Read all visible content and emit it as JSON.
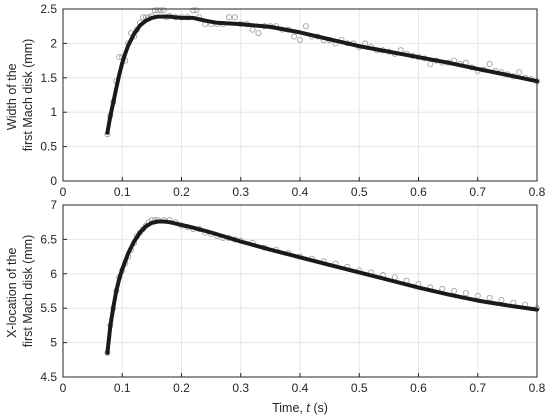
{
  "chart_data": [
    {
      "type": "scatter",
      "ylabel_lines": [
        "Width of the",
        "first Mach disk (mm)"
      ],
      "xlim": [
        0,
        0.8
      ],
      "ylim": [
        0,
        2.5
      ],
      "xticks": [
        "0",
        "0.1",
        "0.2",
        "0.3",
        "0.4",
        "0.5",
        "0.6",
        "0.7",
        "0.8"
      ],
      "yticks": [
        "0",
        "0.5",
        "1",
        "1.5",
        "2",
        "2.5"
      ],
      "grid": true,
      "series": [
        {
          "kind": "markers",
          "color": "#9a9a9a",
          "x": [
            0.075,
            0.08,
            0.085,
            0.09,
            0.095,
            0.1,
            0.105,
            0.11,
            0.115,
            0.12,
            0.125,
            0.13,
            0.135,
            0.14,
            0.145,
            0.15,
            0.155,
            0.16,
            0.165,
            0.17,
            0.175,
            0.18,
            0.19,
            0.2,
            0.21,
            0.22,
            0.225,
            0.23,
            0.24,
            0.25,
            0.26,
            0.27,
            0.28,
            0.29,
            0.3,
            0.31,
            0.32,
            0.33,
            0.34,
            0.35,
            0.36,
            0.37,
            0.38,
            0.39,
            0.4,
            0.41,
            0.42,
            0.43,
            0.44,
            0.45,
            0.46,
            0.47,
            0.48,
            0.49,
            0.5,
            0.51,
            0.52,
            0.53,
            0.54,
            0.55,
            0.56,
            0.57,
            0.58,
            0.59,
            0.6,
            0.61,
            0.62,
            0.63,
            0.64,
            0.65,
            0.66,
            0.67,
            0.68,
            0.69,
            0.7,
            0.71,
            0.72,
            0.73,
            0.74,
            0.75,
            0.76,
            0.77,
            0.78,
            0.79,
            0.8
          ],
          "y": [
            0.68,
            0.95,
            1.15,
            1.45,
            1.8,
            1.8,
            1.75,
            2.0,
            2.15,
            2.1,
            2.2,
            2.3,
            2.38,
            2.38,
            2.38,
            2.4,
            2.48,
            2.48,
            2.48,
            2.48,
            2.38,
            2.4,
            2.38,
            2.38,
            2.38,
            2.48,
            2.48,
            2.38,
            2.28,
            2.28,
            2.28,
            2.28,
            2.38,
            2.38,
            2.28,
            2.28,
            2.2,
            2.15,
            2.25,
            2.25,
            2.25,
            2.2,
            2.2,
            2.1,
            2.05,
            2.25,
            2.1,
            2.1,
            2.05,
            2.05,
            2.0,
            2.05,
            2.0,
            2.0,
            1.95,
            2.0,
            1.95,
            1.9,
            1.9,
            1.88,
            1.85,
            1.9,
            1.85,
            1.82,
            1.8,
            1.78,
            1.7,
            1.75,
            1.72,
            1.72,
            1.75,
            1.7,
            1.72,
            1.65,
            1.6,
            1.62,
            1.7,
            1.6,
            1.58,
            1.55,
            1.52,
            1.58,
            1.5,
            1.48,
            1.45
          ]
        },
        {
          "kind": "fit-line",
          "color": "#1a1a1a",
          "x": [
            0.075,
            0.08,
            0.085,
            0.09,
            0.095,
            0.1,
            0.105,
            0.11,
            0.12,
            0.13,
            0.14,
            0.15,
            0.16,
            0.17,
            0.18,
            0.19,
            0.2,
            0.21,
            0.22,
            0.23,
            0.24,
            0.26,
            0.3,
            0.35,
            0.4,
            0.45,
            0.5,
            0.55,
            0.6,
            0.65,
            0.7,
            0.75,
            0.8
          ],
          "y": [
            0.7,
            0.95,
            1.15,
            1.35,
            1.55,
            1.72,
            1.85,
            1.97,
            2.14,
            2.26,
            2.33,
            2.37,
            2.39,
            2.39,
            2.39,
            2.38,
            2.37,
            2.37,
            2.37,
            2.35,
            2.33,
            2.3,
            2.28,
            2.24,
            2.16,
            2.06,
            1.96,
            1.88,
            1.8,
            1.72,
            1.63,
            1.54,
            1.45
          ]
        }
      ]
    },
    {
      "type": "scatter",
      "ylabel_lines": [
        "X-location of the",
        "first Mach disk (mm)"
      ],
      "xlabel": "Time, ",
      "xlabel_var": "t",
      "xlabel_unit": " (s)",
      "xlim": [
        0,
        0.8
      ],
      "ylim": [
        4.5,
        7
      ],
      "xticks": [
        "0",
        "0.1",
        "0.2",
        "0.3",
        "0.4",
        "0.5",
        "0.6",
        "0.7",
        "0.8"
      ],
      "yticks": [
        "4.5",
        "5",
        "5.5",
        "6",
        "6.5",
        "7"
      ],
      "grid": true,
      "series": [
        {
          "kind": "markers",
          "color": "#9a9a9a",
          "x": [
            0.075,
            0.08,
            0.085,
            0.09,
            0.095,
            0.1,
            0.105,
            0.11,
            0.115,
            0.12,
            0.125,
            0.13,
            0.135,
            0.14,
            0.145,
            0.15,
            0.155,
            0.16,
            0.17,
            0.18,
            0.19,
            0.2,
            0.21,
            0.22,
            0.23,
            0.24,
            0.25,
            0.26,
            0.27,
            0.28,
            0.29,
            0.3,
            0.32,
            0.34,
            0.36,
            0.38,
            0.4,
            0.42,
            0.44,
            0.46,
            0.48,
            0.5,
            0.52,
            0.54,
            0.56,
            0.58,
            0.6,
            0.62,
            0.64,
            0.66,
            0.68,
            0.7,
            0.72,
            0.74,
            0.76,
            0.78,
            0.8
          ],
          "y": [
            4.85,
            5.25,
            5.5,
            5.75,
            5.95,
            6.05,
            6.15,
            6.25,
            6.35,
            6.45,
            6.55,
            6.6,
            6.65,
            6.7,
            6.75,
            6.78,
            6.78,
            6.78,
            6.78,
            6.78,
            6.75,
            6.7,
            6.68,
            6.65,
            6.65,
            6.6,
            6.58,
            6.55,
            6.52,
            6.52,
            6.5,
            6.48,
            6.45,
            6.38,
            6.35,
            6.3,
            6.25,
            6.22,
            6.18,
            6.15,
            6.1,
            6.05,
            6.02,
            5.98,
            5.95,
            5.9,
            5.85,
            5.8,
            5.78,
            5.75,
            5.72,
            5.68,
            5.65,
            5.62,
            5.58,
            5.55,
            5.5
          ]
        },
        {
          "kind": "fit-line",
          "color": "#1a1a1a",
          "x": [
            0.075,
            0.08,
            0.085,
            0.09,
            0.095,
            0.1,
            0.11,
            0.12,
            0.13,
            0.14,
            0.15,
            0.16,
            0.17,
            0.18,
            0.19,
            0.2,
            0.22,
            0.25,
            0.3,
            0.35,
            0.4,
            0.45,
            0.5,
            0.55,
            0.6,
            0.65,
            0.7,
            0.75,
            0.8
          ],
          "y": [
            4.85,
            5.25,
            5.52,
            5.75,
            5.93,
            6.07,
            6.3,
            6.47,
            6.6,
            6.69,
            6.74,
            6.76,
            6.76,
            6.75,
            6.73,
            6.71,
            6.67,
            6.6,
            6.47,
            6.35,
            6.24,
            6.13,
            6.02,
            5.91,
            5.8,
            5.7,
            5.61,
            5.54,
            5.48
          ]
        }
      ]
    }
  ]
}
